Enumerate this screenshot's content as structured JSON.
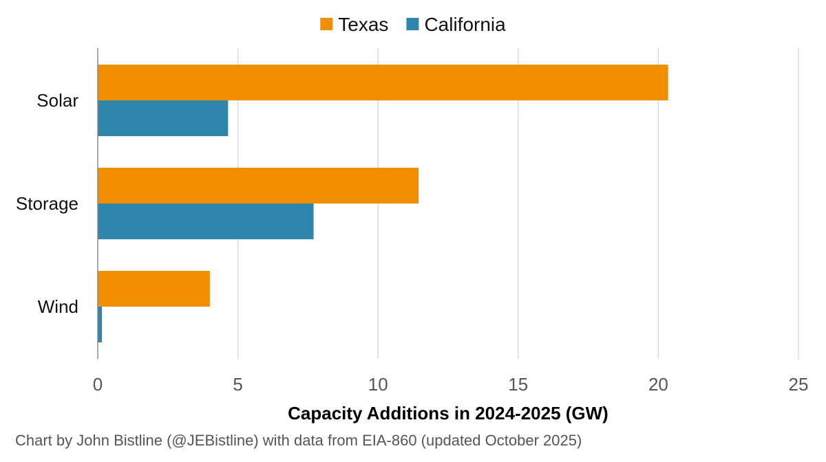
{
  "chart_data": {
    "type": "bar",
    "orientation": "horizontal",
    "categories": [
      "Solar",
      "Storage",
      "Wind"
    ],
    "series": [
      {
        "name": "Texas",
        "color": "#f18f01",
        "values": [
          20.35,
          11.45,
          4.0
        ]
      },
      {
        "name": "California",
        "color": "#2e86ab",
        "values": [
          4.65,
          7.7,
          0.15
        ]
      }
    ],
    "xlabel": "Capacity Additions in 2024-2025 (GW)",
    "xlim": [
      0,
      25
    ],
    "xticks": [
      0,
      5,
      10,
      15,
      20,
      25
    ],
    "grid": "vertical",
    "legend_position": "top-center",
    "source_note": "Chart by John Bistline (@JEBistline) with data from EIA-860 (updated October 2025)"
  }
}
